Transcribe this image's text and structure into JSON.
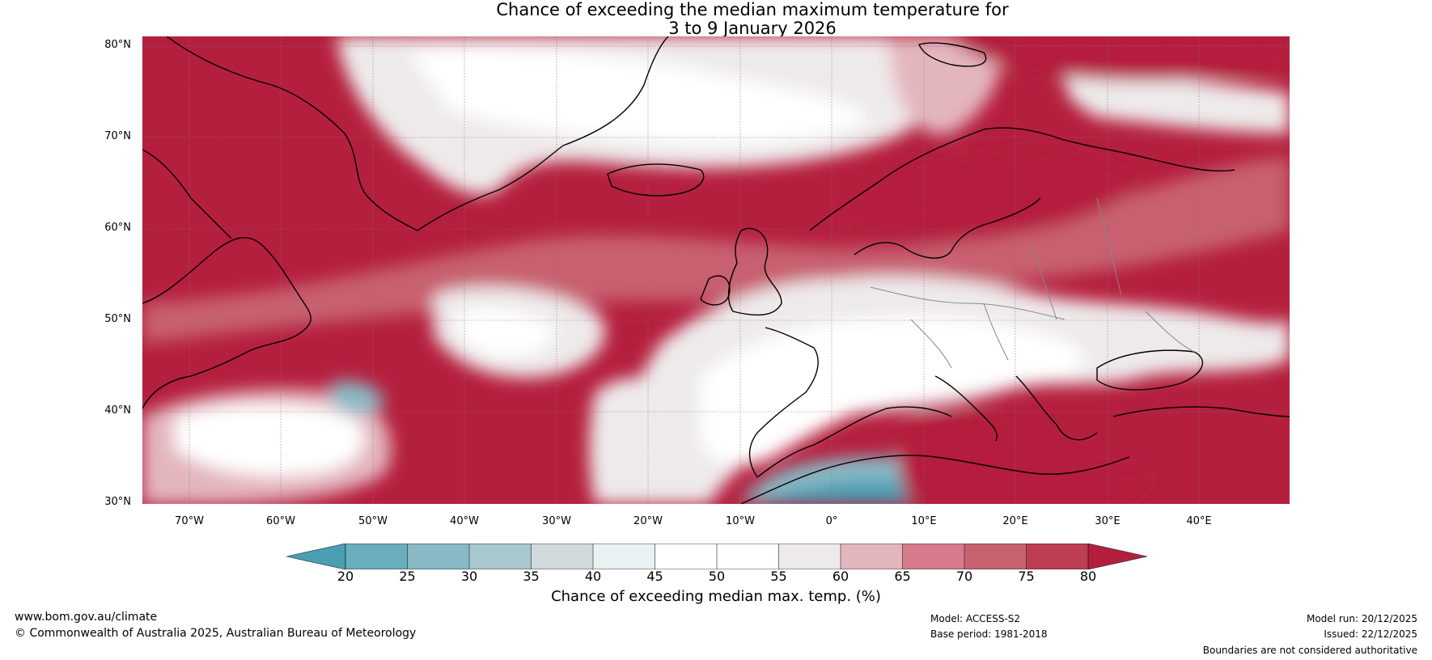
{
  "title": {
    "line1": "Chance of exceeding the median maximum temperature for",
    "line2": "3 to 9 January 2026"
  },
  "map": {
    "lat_labels": [
      "80°N",
      "70°N",
      "60°N",
      "50°N",
      "40°N",
      "30°N"
    ],
    "lon_labels": [
      "70°W",
      "60°W",
      "50°W",
      "40°W",
      "30°W",
      "20°W",
      "10°W",
      "0°",
      "10°E",
      "20°E",
      "30°E",
      "40°E"
    ]
  },
  "colorbar": {
    "ticks": [
      "20",
      "25",
      "30",
      "35",
      "40",
      "45",
      "50",
      "55",
      "60",
      "65",
      "70",
      "75",
      "80"
    ],
    "colors": [
      "#4a9fb3",
      "#6aaebd",
      "#88b9c5",
      "#a8c8ce",
      "#d2dadb",
      "#eaf1f2",
      "#ffffff",
      "#ffffff",
      "#eeeaeb",
      "#e3b6be",
      "#d57b8b",
      "#c8616f",
      "#bd3d55",
      "#b51f3e"
    ],
    "label": "Chance of exceeding median max. temp. (%)"
  },
  "footer": {
    "website": "www.bom.gov.au/climate",
    "copyright": "© Commonwealth of Australia 2025, Australian Bureau of Meteorology",
    "model": "Model: ACCESS-S2",
    "base_period": "Base period: 1981-2018",
    "model_run": "Model run: 20/12/2025",
    "issued": "Issued: 22/12/2025",
    "disclaimer": "Boundaries are not considered authoritative"
  }
}
